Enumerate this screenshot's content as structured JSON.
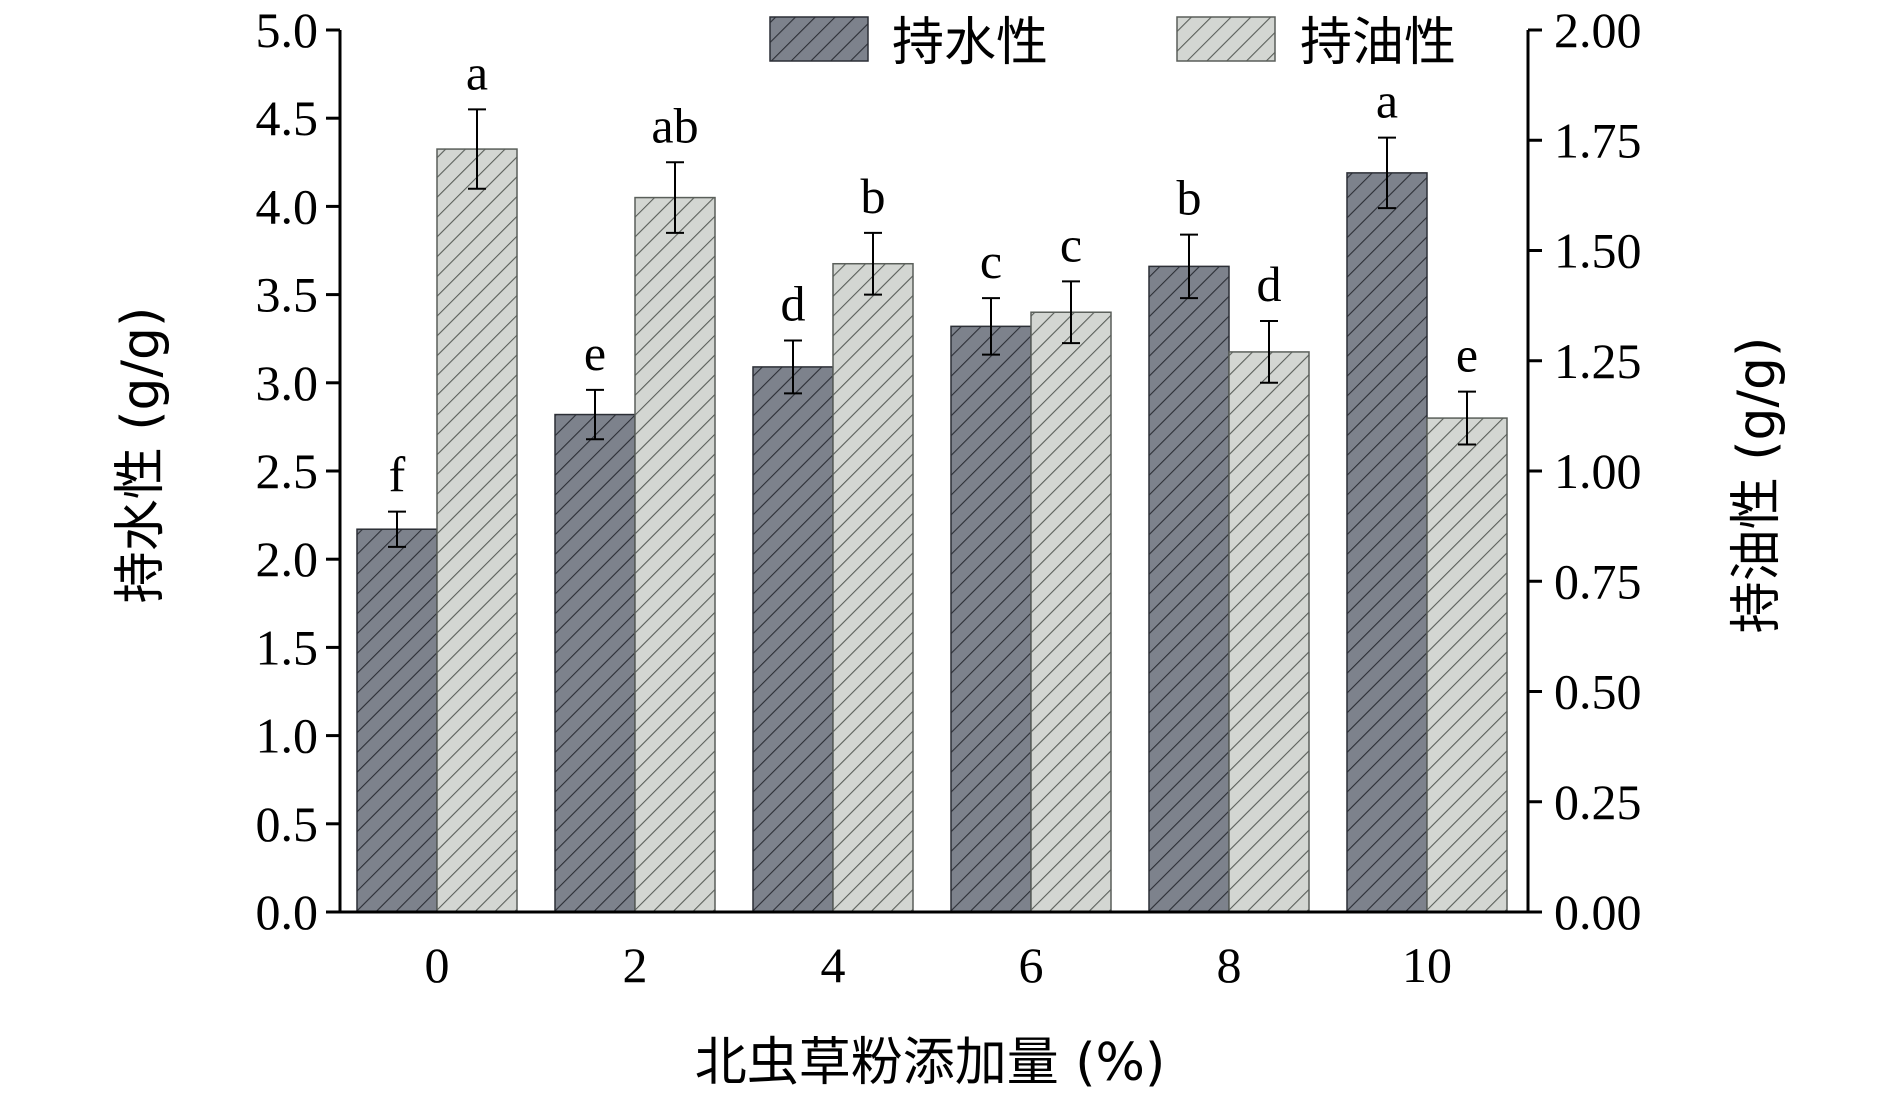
{
  "chart_data": {
    "type": "bar",
    "categories": [
      "0",
      "2",
      "4",
      "6",
      "8",
      "10"
    ],
    "xlabel": "北虫草粉添加量 (%)",
    "ylabel_left": "持水性 (g/g)",
    "ylabel_right": "持油性 (g/g)",
    "ylim_left": [
      0,
      5.0
    ],
    "ylim_right": [
      0,
      2.0
    ],
    "yticks_left": [
      "0.0",
      "0.5",
      "1.0",
      "1.5",
      "2.0",
      "2.5",
      "3.0",
      "3.5",
      "4.0",
      "4.5",
      "5.0"
    ],
    "yticks_right": [
      "0.00",
      "0.25",
      "0.50",
      "0.75",
      "1.00",
      "1.25",
      "1.50",
      "1.75",
      "2.00"
    ],
    "grid": false,
    "legend_position": "top-right",
    "series": [
      {
        "name": "持水性",
        "axis": "left",
        "color": "#7d828c",
        "values": [
          2.17,
          2.82,
          3.09,
          3.32,
          3.66,
          4.19
        ],
        "errors": [
          0.1,
          0.14,
          0.15,
          0.16,
          0.18,
          0.2
        ],
        "labels": [
          "f",
          "e",
          "d",
          "c",
          "b",
          "a"
        ]
      },
      {
        "name": "持油性",
        "axis": "right",
        "color": "#d3d6d2",
        "values": [
          1.73,
          1.62,
          1.47,
          1.36,
          1.27,
          1.12
        ],
        "errors": [
          0.09,
          0.08,
          0.07,
          0.07,
          0.07,
          0.06
        ],
        "labels": [
          "a",
          "ab",
          "b",
          "c",
          "d",
          "e"
        ]
      }
    ]
  }
}
